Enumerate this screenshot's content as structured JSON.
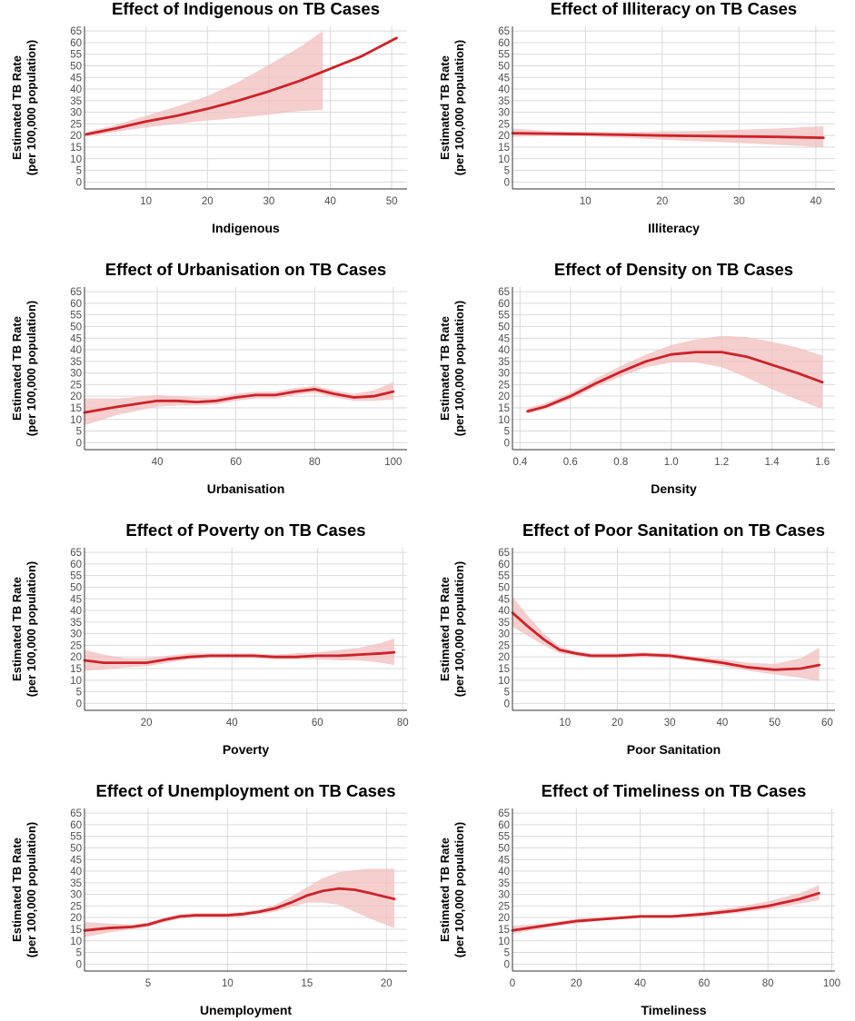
{
  "style": {
    "line_color": "#cc2229",
    "ribbon_color": "#f2bebe",
    "grid_color": "#d9d9d9",
    "axis_color": "#333333"
  },
  "chart_data": [
    {
      "type": "line",
      "title": "Effect of Indigenous on TB Cases",
      "xlabel": "Indigenous",
      "ylabel": "Estimated TB Rate\n(per 100,000 population)",
      "xlim": [
        0,
        52.5
      ],
      "xticks": [
        10,
        20,
        30,
        40,
        50
      ],
      "ylim": [
        -3,
        67
      ],
      "yticks": [
        0,
        5,
        10,
        15,
        20,
        25,
        30,
        35,
        40,
        45,
        50,
        55,
        60,
        65
      ],
      "grid": true,
      "series": [
        {
          "x": [
            0.3,
            5,
            10,
            15,
            20,
            25,
            30,
            35,
            38.8,
            45,
            50.8
          ],
          "y": [
            20.5,
            23,
            26,
            28.5,
            31.5,
            35,
            39,
            43.5,
            47.5,
            54,
            62
          ]
        }
      ],
      "ribbon": {
        "x": [
          0.3,
          5,
          10,
          15,
          20,
          25,
          30,
          35,
          38.8
        ],
        "lower": [
          19.5,
          21.5,
          23.5,
          25,
          26.5,
          27.5,
          29,
          30.5,
          31
        ],
        "upper": [
          21.5,
          24.5,
          28.5,
          32.5,
          37,
          43,
          50.5,
          58,
          65
        ]
      }
    },
    {
      "type": "line",
      "title": "Effect of Illiteracy on TB Cases",
      "xlabel": "Illiteracy",
      "ylabel": "Estimated TB Rate\n(per 100,000 population)",
      "xlim": [
        0.5,
        42.5
      ],
      "xticks": [
        10,
        20,
        30,
        40
      ],
      "ylim": [
        -3,
        67
      ],
      "yticks": [
        0,
        5,
        10,
        15,
        20,
        25,
        30,
        35,
        40,
        45,
        50,
        55,
        60,
        65
      ],
      "grid": true,
      "series": [
        {
          "x": [
            0.5,
            5,
            10,
            15,
            20,
            25,
            30,
            35,
            41
          ],
          "y": [
            21,
            20.8,
            20.6,
            20.3,
            20,
            19.8,
            19.6,
            19.4,
            19
          ]
        }
      ],
      "ribbon": {
        "x": [
          0.5,
          5,
          10,
          15,
          20,
          25,
          30,
          35,
          41
        ],
        "lower": [
          19.5,
          19.8,
          19.7,
          19,
          18.2,
          17.5,
          16.8,
          16,
          15
        ],
        "upper": [
          23,
          22,
          21.5,
          21.5,
          21.8,
          22,
          22.5,
          23,
          24
        ]
      }
    },
    {
      "type": "line",
      "title": "Effect of Urbanisation on TB Cases",
      "xlabel": "Urbanisation",
      "ylabel": "Estimated TB Rate\n(per 100,000 population)",
      "xlim": [
        21.5,
        103.5
      ],
      "xticks": [
        40,
        60,
        80,
        100
      ],
      "ylim": [
        -3,
        67
      ],
      "yticks": [
        0,
        5,
        10,
        15,
        20,
        25,
        30,
        35,
        40,
        45,
        50,
        55,
        60,
        65
      ],
      "grid": true,
      "series": [
        {
          "x": [
            21.5,
            30,
            40,
            45,
            50,
            55,
            60,
            65,
            70,
            75,
            80,
            85,
            90,
            95,
            100
          ],
          "y": [
            13,
            15.5,
            18,
            18,
            17.5,
            18,
            19.5,
            20.5,
            20.5,
            22,
            23,
            21,
            19.5,
            20,
            22
          ]
        }
      ],
      "ribbon": {
        "x": [
          21.5,
          30,
          40,
          45,
          50,
          55,
          60,
          65,
          70,
          75,
          80,
          85,
          90,
          95,
          100
        ],
        "lower": [
          7.5,
          12,
          15.5,
          16,
          16,
          16.5,
          18,
          19,
          19,
          20.5,
          21.5,
          19.5,
          18,
          18,
          18.5
        ],
        "upper": [
          19,
          19,
          20.5,
          20,
          19.5,
          19.5,
          21,
          22,
          22,
          23.5,
          24.5,
          22.5,
          21,
          22.5,
          26
        ]
      }
    },
    {
      "type": "line",
      "title": "Effect of Density on TB Cases",
      "xlabel": "Density",
      "ylabel": "Estimated TB Rate\n(per 100,000 population)",
      "xlim": [
        0.37,
        1.65
      ],
      "xticks": [
        0.4,
        0.6,
        0.8,
        1.0,
        1.2,
        1.4,
        1.6
      ],
      "xtick_labels": [
        "0.4",
        "0.6",
        "0.8",
        "1.0",
        "1.2",
        "1.4",
        "1.6"
      ],
      "ylim": [
        -3,
        67
      ],
      "yticks": [
        0,
        5,
        10,
        15,
        20,
        25,
        30,
        35,
        40,
        45,
        50,
        55,
        60,
        65
      ],
      "grid": true,
      "series": [
        {
          "x": [
            0.43,
            0.5,
            0.6,
            0.7,
            0.8,
            0.9,
            1.0,
            1.1,
            1.2,
            1.3,
            1.4,
            1.5,
            1.6
          ],
          "y": [
            13.5,
            15.5,
            20,
            25.5,
            30.5,
            35,
            38,
            39,
            39,
            37,
            33.5,
            30,
            26
          ]
        }
      ],
      "ribbon": {
        "x": [
          0.43,
          0.5,
          0.6,
          0.7,
          0.8,
          0.9,
          1.0,
          1.1,
          1.2,
          1.3,
          1.4,
          1.5,
          1.6
        ],
        "lower": [
          12.5,
          14.5,
          18.5,
          24,
          28.5,
          32.5,
          34.5,
          34.5,
          32.5,
          28,
          23,
          18.5,
          14.5
        ],
        "upper": [
          15,
          17,
          21.5,
          27.5,
          33,
          38,
          42,
          44.5,
          46,
          45.5,
          43.5,
          41,
          37.5
        ]
      }
    },
    {
      "type": "line",
      "title": "Effect of Poverty on TB Cases",
      "xlabel": "Poverty",
      "ylabel": "Estimated TB Rate\n(per 100,000 population)",
      "xlim": [
        5.5,
        81
      ],
      "xticks": [
        20,
        40,
        60,
        80
      ],
      "ylim": [
        -3,
        67
      ],
      "yticks": [
        0,
        5,
        10,
        15,
        20,
        25,
        30,
        35,
        40,
        45,
        50,
        55,
        60,
        65
      ],
      "grid": true,
      "series": [
        {
          "x": [
            5.5,
            10,
            15,
            20,
            25,
            30,
            35,
            40,
            45,
            50,
            55,
            60,
            65,
            70,
            75,
            78
          ],
          "y": [
            18.5,
            17.5,
            17.5,
            17.5,
            19,
            20,
            20.5,
            20.5,
            20.5,
            20,
            20,
            20.5,
            20.5,
            21,
            21.5,
            22
          ]
        }
      ],
      "ribbon": {
        "x": [
          5.5,
          10,
          15,
          20,
          25,
          30,
          35,
          40,
          45,
          50,
          55,
          60,
          65,
          70,
          75,
          78
        ],
        "lower": [
          14,
          14.5,
          15.5,
          16,
          17.5,
          19,
          19.5,
          19.5,
          19.5,
          19,
          19,
          19,
          18.5,
          18.5,
          17.5,
          16.5
        ],
        "upper": [
          23,
          21,
          19.5,
          19.5,
          20.5,
          21.5,
          21.5,
          21.5,
          21.5,
          21,
          21.5,
          22,
          23,
          24,
          26,
          28
        ]
      }
    },
    {
      "type": "line",
      "title": "Effect of Poor Sanitation on TB Cases",
      "xlabel": "Poor Sanitation",
      "ylabel": "Estimated TB Rate\n(per 100,000 population)",
      "xlim": [
        0,
        61.5
      ],
      "xticks": [
        10,
        20,
        30,
        40,
        50,
        60
      ],
      "ylim": [
        -3,
        67
      ],
      "yticks": [
        0,
        5,
        10,
        15,
        20,
        25,
        30,
        35,
        40,
        45,
        50,
        55,
        60,
        65
      ],
      "grid": true,
      "series": [
        {
          "x": [
            0,
            3,
            6,
            9,
            12,
            15,
            20,
            25,
            30,
            35,
            40,
            45,
            50,
            55,
            58.5
          ],
          "y": [
            39,
            33,
            27.5,
            23,
            21.5,
            20.5,
            20.5,
            21,
            20.5,
            19,
            17.5,
            15.5,
            14.5,
            15,
            16.5
          ]
        }
      ],
      "ribbon": {
        "x": [
          0,
          3,
          6,
          9,
          12,
          15,
          20,
          25,
          30,
          35,
          40,
          45,
          50,
          55,
          58.5
        ],
        "lower": [
          33,
          29,
          25,
          21.5,
          20.5,
          19.5,
          19.5,
          20,
          19.5,
          18,
          16,
          14,
          12.5,
          11,
          9.5
        ],
        "upper": [
          46,
          37.5,
          30,
          24.5,
          22.5,
          21.5,
          21.5,
          22,
          21.5,
          20,
          19,
          17.5,
          17,
          19.5,
          24
        ]
      }
    },
    {
      "type": "line",
      "title": "Effect of Unemployment on TB Cases",
      "xlabel": "Unemployment",
      "ylabel": "Estimated TB Rate\n(per 100,000 population)",
      "xlim": [
        1,
        21.3
      ],
      "xticks": [
        5,
        10,
        15,
        20
      ],
      "ylim": [
        -3,
        67
      ],
      "yticks": [
        0,
        5,
        10,
        15,
        20,
        25,
        30,
        35,
        40,
        45,
        50,
        55,
        60,
        65
      ],
      "grid": true,
      "series": [
        {
          "x": [
            1,
            2.5,
            4,
            5,
            6,
            7,
            8,
            10,
            11,
            12,
            13,
            14,
            15,
            16,
            17,
            18,
            19,
            20.5
          ],
          "y": [
            14.5,
            15.5,
            16,
            17,
            19,
            20.5,
            21,
            21,
            21.5,
            22.5,
            24,
            26.5,
            29.5,
            31.5,
            32.5,
            32,
            30.5,
            28
          ]
        }
      ],
      "ribbon": {
        "x": [
          1,
          2.5,
          4,
          5,
          6,
          7,
          8,
          10,
          11,
          12,
          13,
          14,
          15,
          16,
          17,
          18,
          19,
          20.5
        ],
        "lower": [
          11.5,
          13.5,
          15,
          16,
          18,
          19.5,
          20,
          20,
          20.5,
          21.5,
          22.5,
          24.5,
          26.5,
          26.5,
          25.5,
          22.5,
          19.5,
          15.5
        ],
        "upper": [
          18,
          17.5,
          17,
          18,
          20,
          21.5,
          22,
          22,
          22.5,
          23.5,
          25.5,
          29,
          33,
          37,
          39.5,
          40.5,
          41,
          41
        ]
      }
    },
    {
      "type": "line",
      "title": "Effect of Timeliness on TB Cases",
      "xlabel": "Timeliness",
      "ylabel": "Estimated TB Rate\n(per 100,000 population)",
      "xlim": [
        0,
        101
      ],
      "xticks": [
        0,
        20,
        40,
        60,
        80,
        100
      ],
      "ylim": [
        -3,
        67
      ],
      "yticks": [
        0,
        5,
        10,
        15,
        20,
        25,
        30,
        35,
        40,
        45,
        50,
        55,
        60,
        65
      ],
      "grid": true,
      "series": [
        {
          "x": [
            0,
            10,
            20,
            30,
            40,
            50,
            60,
            70,
            80,
            90,
            96
          ],
          "y": [
            14.5,
            16.5,
            18.5,
            19.5,
            20.5,
            20.5,
            21.5,
            23,
            25,
            28,
            30.5
          ]
        }
      ],
      "ribbon": {
        "x": [
          0,
          10,
          20,
          30,
          40,
          50,
          60,
          70,
          80,
          90,
          96
        ],
        "lower": [
          13,
          15.5,
          17.5,
          19,
          19.8,
          19.8,
          20.5,
          22,
          23.5,
          26,
          27.5
        ],
        "upper": [
          16.5,
          17.5,
          19.5,
          20.5,
          21.2,
          21.2,
          22.5,
          24.5,
          27,
          30.5,
          34
        ]
      }
    }
  ]
}
